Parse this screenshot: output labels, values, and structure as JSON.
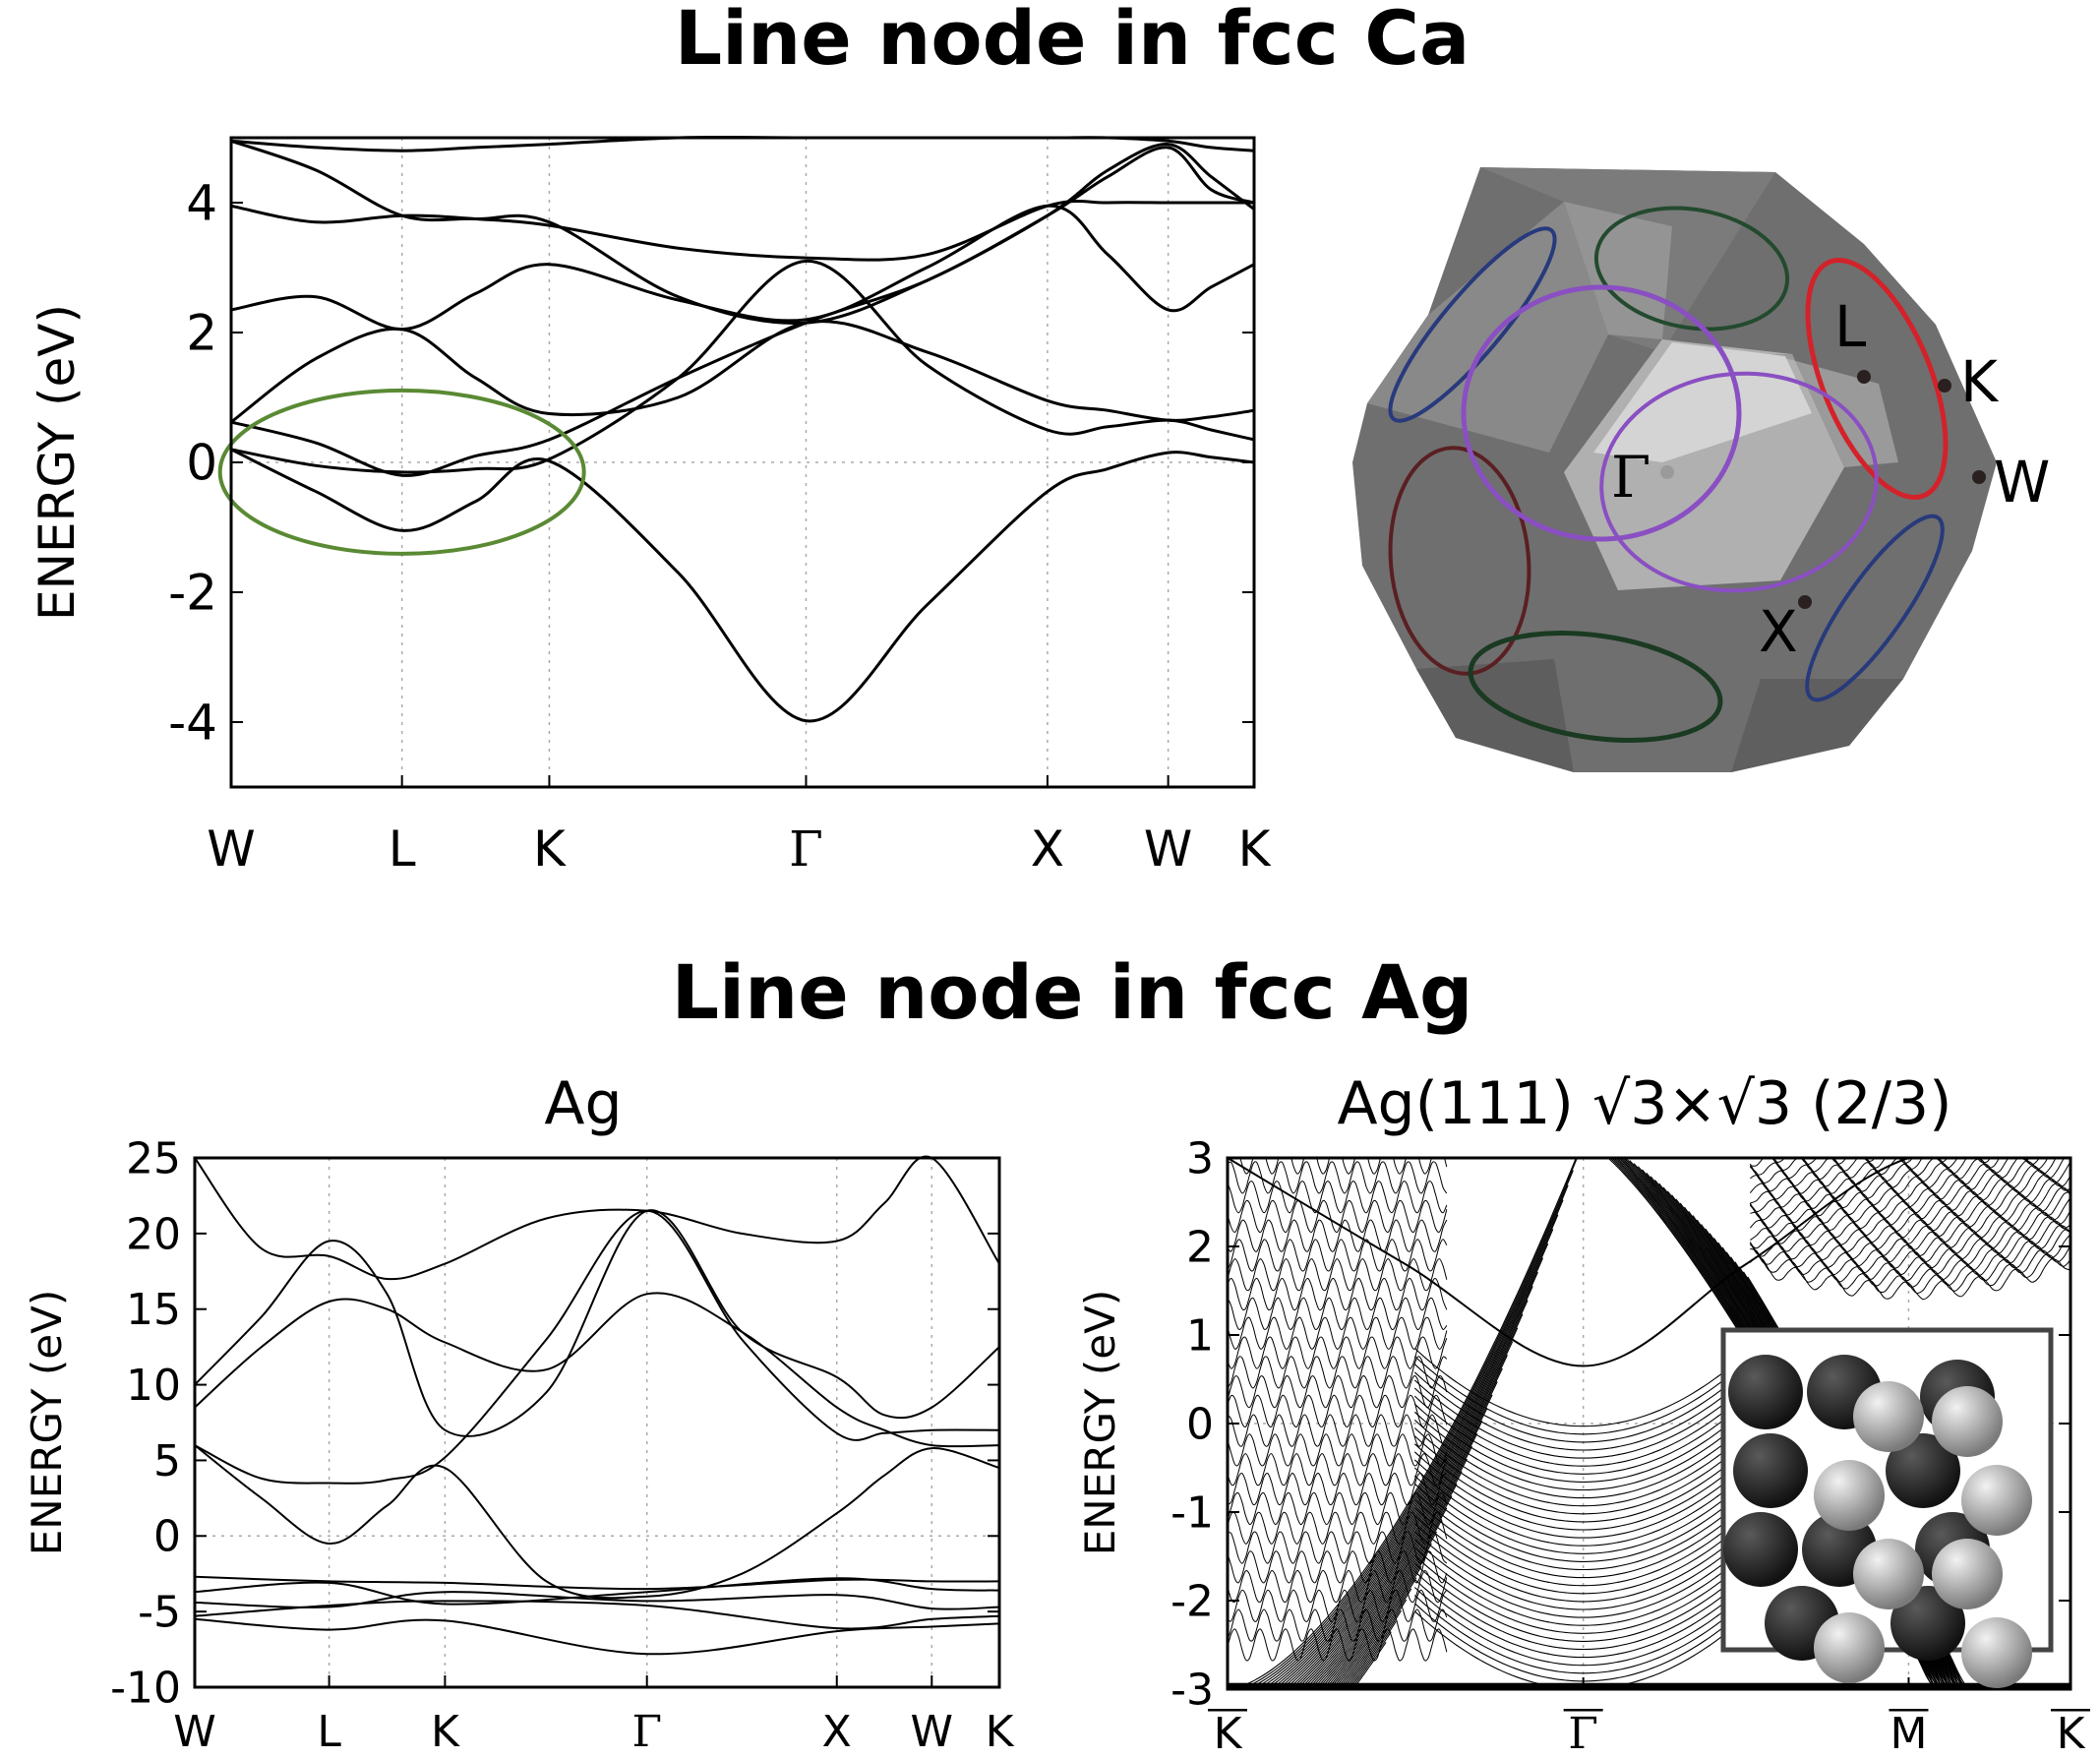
{
  "page": {
    "title_ca": "Line node in fcc Ca",
    "title_ag": "Line node in fcc Ag"
  },
  "bz": {
    "labels": [
      "L",
      "K",
      "W",
      "Γ",
      "X"
    ],
    "colors": {
      "body": "#6d6d6d",
      "face": "#8a8a8a",
      "light": "#d6d6d6",
      "purple": "#8a4fc2",
      "red": "#d3222a",
      "green": "#234a2e",
      "blue": "#283a7c"
    }
  },
  "chart_data": [
    {
      "type": "line",
      "ylabel": "ENERGY (eV)",
      "ylim": [
        -5,
        5
      ],
      "yticks": [
        "4",
        "2",
        "0",
        "-2",
        "-4"
      ],
      "kpoints": [
        "W",
        "L",
        "K",
        "Γ",
        "X",
        "W",
        "K"
      ],
      "kpos": [
        0,
        0.167,
        0.311,
        0.562,
        0.798,
        0.916,
        1.0
      ],
      "grid": "vertical dotted at k-points, dotted zero line",
      "annotation": "green ellipse around line node near W-L-K at 0 eV",
      "annotation_color": "#5a8a34",
      "series": [
        {
          "x": [
            0,
            0.083,
            0.167,
            0.239,
            0.311,
            0.437,
            0.562,
            0.68,
            0.798,
            0.857,
            0.916,
            0.958,
            1.0
          ],
          "values": [
            0.2,
            -0.45,
            -1.05,
            -0.6,
            0.02,
            -1.7,
            -3.98,
            -2.2,
            -0.45,
            -0.1,
            0.15,
            0.08,
            0.0
          ]
        },
        {
          "x": [
            0,
            0.083,
            0.167,
            0.239,
            0.311,
            0.437,
            0.562,
            0.68,
            0.798,
            0.857,
            0.916,
            0.958,
            1.0
          ],
          "values": [
            0.2,
            -0.05,
            -0.15,
            -0.1,
            0.05,
            1.3,
            3.1,
            1.5,
            0.5,
            0.55,
            0.65,
            0.5,
            0.35
          ]
        },
        {
          "x": [
            0,
            0.083,
            0.167,
            0.239,
            0.311,
            0.437,
            0.562,
            0.68,
            0.798,
            0.857,
            0.916,
            0.958,
            1.0
          ],
          "values": [
            0.62,
            1.6,
            2.05,
            1.3,
            0.75,
            1.0,
            2.15,
            1.7,
            0.95,
            0.8,
            0.65,
            0.7,
            0.8
          ]
        },
        {
          "x": [
            0,
            0.083,
            0.167,
            0.239,
            0.311,
            0.437,
            0.562,
            0.68,
            0.798,
            0.857,
            0.916,
            0.958,
            1.0
          ],
          "values": [
            0.62,
            0.3,
            -0.2,
            0.1,
            0.35,
            1.3,
            2.15,
            2.8,
            3.8,
            4.5,
            4.9,
            4.4,
            3.9
          ]
        },
        {
          "x": [
            0,
            0.083,
            0.167,
            0.239,
            0.311,
            0.437,
            0.562,
            0.68,
            0.798,
            0.857,
            0.916,
            0.958,
            1.0
          ],
          "values": [
            2.35,
            2.55,
            2.05,
            2.6,
            3.05,
            2.5,
            2.2,
            3.0,
            3.95,
            3.2,
            2.35,
            2.7,
            3.05
          ]
        },
        {
          "x": [
            0,
            0.083,
            0.167,
            0.239,
            0.311,
            0.437,
            0.562,
            0.68,
            0.798,
            0.857,
            0.916,
            0.958,
            1.0
          ],
          "values": [
            3.95,
            3.7,
            3.8,
            3.75,
            3.65,
            3.3,
            3.15,
            3.2,
            3.95,
            4.0,
            4.0,
            4.0,
            4.0
          ]
        },
        {
          "x": [
            0,
            0.083,
            0.167,
            0.239,
            0.311,
            0.437,
            0.562,
            0.68,
            0.798,
            0.857,
            0.916,
            0.958,
            1.0
          ],
          "values": [
            4.95,
            4.5,
            3.8,
            3.75,
            3.7,
            2.55,
            2.15,
            2.8,
            3.8,
            4.4,
            4.85,
            4.2,
            4.0
          ]
        },
        {
          "x": [
            0,
            0.083,
            0.167,
            0.239,
            0.311,
            0.437,
            0.562,
            0.68,
            0.798,
            0.857,
            0.916,
            0.958,
            1.0
          ],
          "values": [
            4.95,
            4.85,
            4.8,
            4.85,
            4.9,
            5.0,
            5.0,
            5.0,
            5.0,
            5.0,
            4.95,
            4.85,
            4.8
          ]
        }
      ]
    },
    {
      "type": "line",
      "title": "Ag",
      "ylabel": "ENERGY (eV)",
      "ylim": [
        -10,
        25
      ],
      "yticks": [
        "25",
        "20",
        "15",
        "10",
        "5",
        "0",
        "-5",
        "-10"
      ],
      "kpoints": [
        "W",
        "L",
        "K",
        "Γ",
        "X",
        "W",
        "K"
      ],
      "kpos": [
        0,
        0.167,
        0.311,
        0.562,
        0.798,
        0.916,
        1.0
      ],
      "grid": "vertical dotted at k-points, dotted zero line",
      "series": [
        {
          "x": [
            0,
            0.167,
            0.311,
            0.562,
            0.798,
            0.916,
            1.0
          ],
          "values": [
            -5.5,
            -6.2,
            -5.6,
            -7.8,
            -6.3,
            -6.0,
            -5.8
          ]
        },
        {
          "x": [
            0,
            0.167,
            0.311,
            0.562,
            0.798,
            0.916,
            1.0
          ],
          "values": [
            -5.3,
            -4.6,
            -4.3,
            -4.6,
            -6.1,
            -5.5,
            -5.3
          ]
        },
        {
          "x": [
            0,
            0.167,
            0.311,
            0.562,
            0.798,
            0.916,
            1.0
          ],
          "values": [
            -4.4,
            -4.7,
            -3.7,
            -4.3,
            -3.9,
            -4.8,
            -4.7
          ]
        },
        {
          "x": [
            0,
            0.167,
            0.311,
            0.562,
            0.798,
            0.916,
            1.0
          ],
          "values": [
            -3.7,
            -3.1,
            -4.5,
            -3.7,
            -2.8,
            -3.5,
            -3.6
          ]
        },
        {
          "x": [
            0,
            0.167,
            0.311,
            0.562,
            0.798,
            0.916,
            1.0
          ],
          "values": [
            -2.7,
            -3.0,
            -3.1,
            -3.5,
            -2.9,
            -3.0,
            -3.0
          ]
        },
        {
          "x": [
            0,
            0.083,
            0.167,
            0.239,
            0.311,
            0.437,
            0.562,
            0.68,
            0.798,
            0.857,
            0.916,
            1.0
          ],
          "values": [
            6.0,
            2.5,
            -0.5,
            2.0,
            4.5,
            -3.0,
            -4.0,
            -2.5,
            1.5,
            4.0,
            5.8,
            4.5
          ]
        },
        {
          "x": [
            0,
            0.083,
            0.167,
            0.239,
            0.311,
            0.437,
            0.562,
            0.68,
            0.798,
            0.857,
            0.916,
            1.0
          ],
          "values": [
            6.0,
            3.8,
            3.5,
            3.7,
            5.2,
            13.0,
            21.5,
            13.0,
            6.8,
            6.8,
            7.0,
            7.0
          ]
        },
        {
          "x": [
            0,
            0.083,
            0.167,
            0.239,
            0.311,
            0.437,
            0.562,
            0.68,
            0.798,
            0.857,
            0.916,
            1.0
          ],
          "values": [
            8.5,
            12.5,
            15.5,
            15.0,
            12.8,
            11.0,
            16.0,
            13.5,
            8.5,
            7.0,
            6.0,
            6.0
          ]
        },
        {
          "x": [
            0,
            0.083,
            0.167,
            0.239,
            0.311,
            0.437,
            0.562,
            0.68,
            0.798,
            0.857,
            0.916,
            1.0
          ],
          "values": [
            10.0,
            14.5,
            19.5,
            16.0,
            7.0,
            9.5,
            21.5,
            13.5,
            10.5,
            8.0,
            8.5,
            12.5
          ]
        },
        {
          "x": [
            0,
            0.083,
            0.167,
            0.239,
            0.311,
            0.437,
            0.562,
            0.68,
            0.798,
            0.857,
            0.916,
            1.0
          ],
          "values": [
            25.0,
            19.0,
            18.5,
            17.0,
            18.0,
            21.0,
            21.5,
            20.0,
            19.5,
            22.0,
            25.0,
            18.0
          ]
        }
      ]
    },
    {
      "type": "line",
      "title": "Ag(111) √3×√3 (2/3)",
      "ylabel": "ENERGY (eV)",
      "ylim": [
        -3,
        3
      ],
      "yticks": [
        "3",
        "2",
        "1",
        "0",
        "-1",
        "-2",
        "-3"
      ],
      "kpoints": [
        "K",
        "Γ",
        "M",
        "K"
      ],
      "kpoints_overlined": true,
      "kpos": [
        0,
        0.422,
        0.808,
        1.0
      ],
      "grid": "vertical dotted at k-points, dotted zero line",
      "surface_band": {
        "x": [
          0,
          0.211,
          0.422,
          0.615,
          0.808,
          1.0
        ],
        "values": [
          3.0,
          1.8,
          0.65,
          1.8,
          3.0,
          3.0
        ]
      },
      "inset": "atomic structure, dark and light grey spheres"
    }
  ]
}
